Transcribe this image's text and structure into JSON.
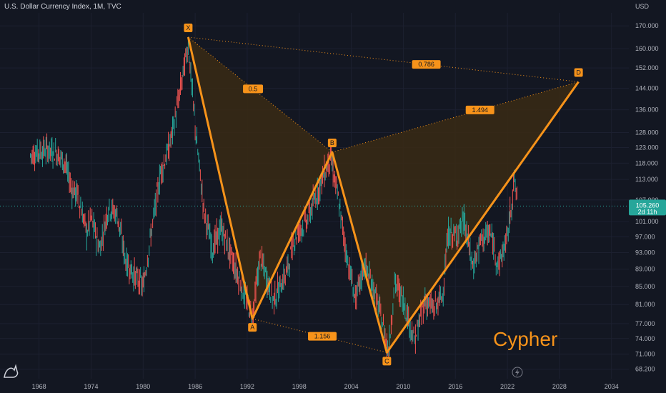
{
  "header": {
    "title": "U.S. Dollar Currency Index, 1M, TVC"
  },
  "colors": {
    "background": "#131722",
    "up": "#26a69a",
    "down": "#ef5350",
    "pattern": "#f7931a",
    "pattern_fill": "#3a2a14",
    "price_tag": "#26a69a"
  },
  "icons": {
    "logo": "tradingview-logo-icon",
    "flash": "flash-icon"
  },
  "chart_data": {
    "type": "line",
    "unit": "USD",
    "y_scale": "log",
    "ylim": [
      66.5,
      176
    ],
    "xlim": [
      1963.5,
      2036
    ],
    "y_ticks": [
      "170.000",
      "160.000",
      "152.000",
      "144.000",
      "136.000",
      "128.000",
      "123.000",
      "118.000",
      "113.000",
      "107.000",
      "101.000",
      "97.000",
      "93.000",
      "89.000",
      "85.000",
      "81.000",
      "77.000",
      "74.000",
      "71.000",
      "68.200"
    ],
    "x_ticks": [
      "1968",
      "1974",
      "1980",
      "1986",
      "1992",
      "1998",
      "2004",
      "2010",
      "2016",
      "2022",
      "2028",
      "2034"
    ],
    "current_price": {
      "value": "105.260",
      "countdown": "2d 11h"
    },
    "price_series": [
      {
        "x": 1967.0,
        "y": 120.5
      },
      {
        "x": 1968.0,
        "y": 121.8
      },
      {
        "x": 1969.0,
        "y": 122.3
      },
      {
        "x": 1970.0,
        "y": 121.5
      },
      {
        "x": 1971.0,
        "y": 118.0
      },
      {
        "x": 1971.8,
        "y": 110.0
      },
      {
        "x": 1972.5,
        "y": 108.5
      },
      {
        "x": 1973.5,
        "y": 98.0
      },
      {
        "x": 1974.0,
        "y": 102.0
      },
      {
        "x": 1975.0,
        "y": 94.0
      },
      {
        "x": 1976.0,
        "y": 105.0
      },
      {
        "x": 1977.0,
        "y": 103.0
      },
      {
        "x": 1978.0,
        "y": 91.0
      },
      {
        "x": 1979.0,
        "y": 87.5
      },
      {
        "x": 1980.0,
        "y": 85.0
      },
      {
        "x": 1981.0,
        "y": 99.0
      },
      {
        "x": 1982.0,
        "y": 115.0
      },
      {
        "x": 1983.0,
        "y": 123.0
      },
      {
        "x": 1984.0,
        "y": 138.0
      },
      {
        "x": 1985.2,
        "y": 162.0
      },
      {
        "x": 1986.0,
        "y": 130.0
      },
      {
        "x": 1987.0,
        "y": 104.0
      },
      {
        "x": 1988.0,
        "y": 94.0
      },
      {
        "x": 1989.0,
        "y": 99.5
      },
      {
        "x": 1990.0,
        "y": 93.0
      },
      {
        "x": 1991.0,
        "y": 87.0
      },
      {
        "x": 1992.6,
        "y": 78.5
      },
      {
        "x": 1993.5,
        "y": 92.0
      },
      {
        "x": 1995.0,
        "y": 82.0
      },
      {
        "x": 1996.5,
        "y": 88.0
      },
      {
        "x": 1997.5,
        "y": 97.0
      },
      {
        "x": 1999.0,
        "y": 102.0
      },
      {
        "x": 2000.5,
        "y": 112.0
      },
      {
        "x": 2001.6,
        "y": 120.0
      },
      {
        "x": 2002.5,
        "y": 107.0
      },
      {
        "x": 2003.5,
        "y": 92.0
      },
      {
        "x": 2004.5,
        "y": 82.0
      },
      {
        "x": 2005.5,
        "y": 90.0
      },
      {
        "x": 2006.5,
        "y": 85.0
      },
      {
        "x": 2007.5,
        "y": 78.0
      },
      {
        "x": 2008.3,
        "y": 71.5
      },
      {
        "x": 2009.0,
        "y": 86.0
      },
      {
        "x": 2010.0,
        "y": 82.0
      },
      {
        "x": 2011.3,
        "y": 73.5
      },
      {
        "x": 2012.5,
        "y": 82.0
      },
      {
        "x": 2013.5,
        "y": 80.0
      },
      {
        "x": 2014.5,
        "y": 83.0
      },
      {
        "x": 2015.2,
        "y": 98.0
      },
      {
        "x": 2016.0,
        "y": 97.0
      },
      {
        "x": 2017.0,
        "y": 101.5
      },
      {
        "x": 2018.0,
        "y": 89.5
      },
      {
        "x": 2019.0,
        "y": 96.5
      },
      {
        "x": 2020.0,
        "y": 98.0
      },
      {
        "x": 2021.0,
        "y": 90.0
      },
      {
        "x": 2022.0,
        "y": 97.0
      },
      {
        "x": 2022.8,
        "y": 113.0
      },
      {
        "x": 2023.2,
        "y": 105.3
      }
    ],
    "pattern": {
      "name": "Cypher",
      "points": [
        {
          "label": "X",
          "x": 1985.2,
          "y": 165.0,
          "pos": "above"
        },
        {
          "label": "A",
          "x": 1992.6,
          "y": 78.0,
          "pos": "below"
        },
        {
          "label": "B",
          "x": 2001.8,
          "y": 121.5,
          "pos": "above"
        },
        {
          "label": "C",
          "x": 2008.1,
          "y": 71.3,
          "pos": "below"
        },
        {
          "label": "D",
          "x": 2030.2,
          "y": 146.5,
          "pos": "above"
        }
      ],
      "ratios": [
        {
          "text": "0.5",
          "from": "X",
          "to": "B",
          "t": 0.45
        },
        {
          "text": "1.494",
          "from": "B",
          "to": "D",
          "t": 0.6
        },
        {
          "text": "0.786",
          "from": "X",
          "to": "D",
          "t": 0.61
        },
        {
          "text": "1.156",
          "from": "A",
          "to": "C",
          "t": 0.52
        }
      ]
    }
  }
}
